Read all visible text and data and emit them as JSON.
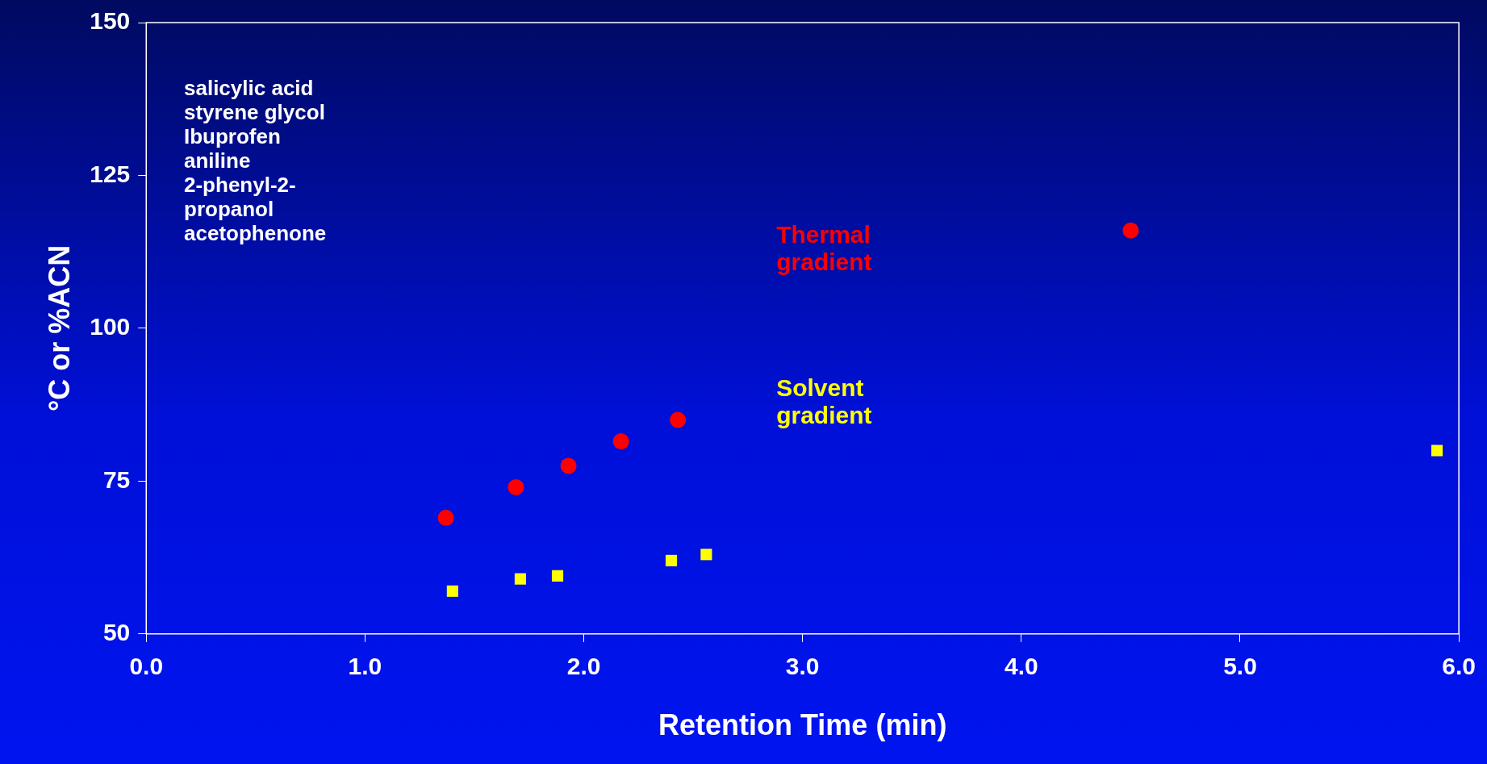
{
  "chart_data": {
    "type": "scatter",
    "xlabel": "Retention Time (min)",
    "ylabel": "°C or %ACN",
    "xlim": [
      0,
      6
    ],
    "xticks": [
      {
        "value": 0,
        "label": "0.0"
      },
      {
        "value": 1,
        "label": "1.0"
      },
      {
        "value": 2,
        "label": "2.0"
      },
      {
        "value": 3,
        "label": "3.0"
      },
      {
        "value": 4,
        "label": "4.0"
      },
      {
        "value": 5,
        "label": "5.0"
      },
      {
        "value": 6,
        "label": "6.0"
      }
    ],
    "ylim": [
      50,
      150
    ],
    "yticks": [
      50,
      75,
      100,
      125,
      150
    ],
    "grid": false,
    "legend": false,
    "annotations": [
      "salicylic acid",
      "styrene glycol",
      "Ibuprofen",
      "aniline",
      "2-phenyl-2-",
      "propanol",
      "acetophenone"
    ],
    "series": [
      {
        "name": "Thermal gradient",
        "color": "#ff0000",
        "marker": "circle",
        "x": [
          1.37,
          1.69,
          1.93,
          2.17,
          2.43,
          4.5
        ],
        "values": [
          69,
          74,
          77.5,
          81.5,
          85,
          116
        ]
      },
      {
        "name": "Solvent gradient",
        "color": "#ffff00",
        "marker": "square",
        "x": [
          1.4,
          1.71,
          1.88,
          2.4,
          2.56,
          5.9
        ],
        "values": [
          57,
          59,
          59.5,
          62,
          63,
          80
        ]
      }
    ]
  }
}
